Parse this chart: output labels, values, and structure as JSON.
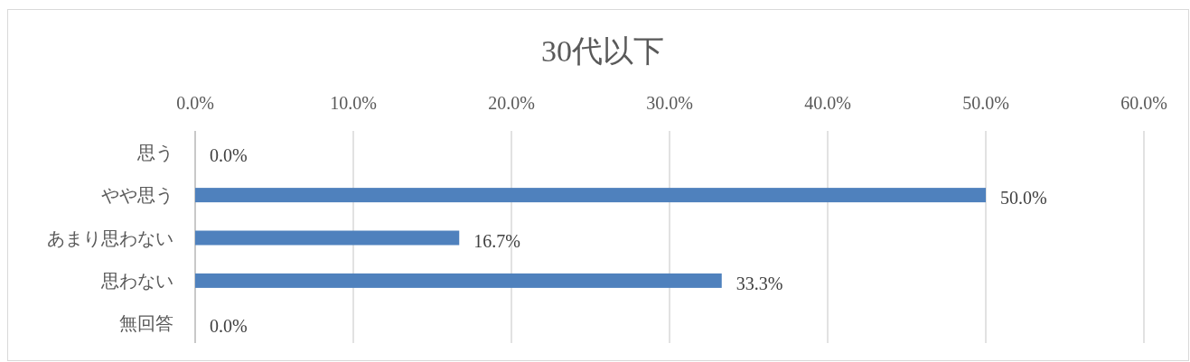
{
  "chart_data": {
    "type": "bar",
    "orientation": "horizontal",
    "title": "30代以下",
    "categories": [
      "思う",
      "やや思う",
      "あまり思わない",
      "思わない",
      "無回答"
    ],
    "values": [
      0,
      50,
      16.7,
      33.3,
      0
    ],
    "value_labels": [
      "0.0%",
      "50.0%",
      "16.7%",
      "33.3%",
      "0.0%"
    ],
    "color": "#4f81bd",
    "xlim": [
      0,
      60
    ],
    "xticks": [
      {
        "value": 0,
        "label": "0.0%"
      },
      {
        "value": 10,
        "label": "10.0%"
      },
      {
        "value": 20,
        "label": "20.0%"
      },
      {
        "value": 30,
        "label": "30.0%"
      },
      {
        "value": 40,
        "label": "40.0%"
      },
      {
        "value": 50,
        "label": "50.0%"
      },
      {
        "value": 60,
        "label": "60.0%"
      }
    ],
    "grid": "x"
  }
}
